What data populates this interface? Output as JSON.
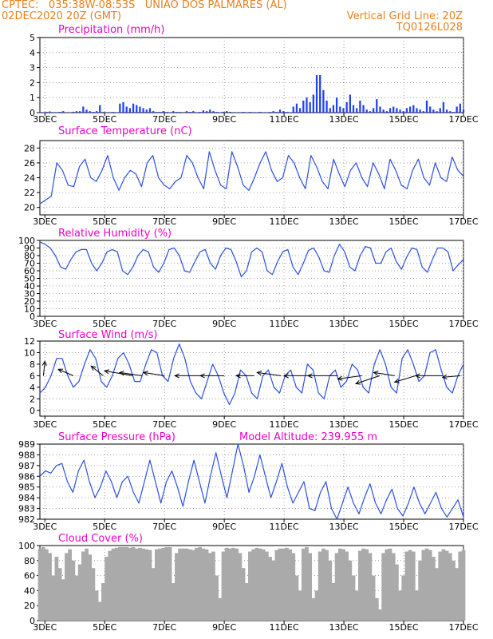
{
  "header": {
    "line1_left": "CPTEC:   035:38W-08:53S   UNIAO DOS PALMARES (AL)",
    "line2_left": "02DEC2020 20Z (GMT)",
    "line2_right": "Vertical Grid Line: 20Z",
    "line3_right": "TQ0126L028"
  },
  "colors": {
    "header": "#e8801c",
    "title": "#ee00cc",
    "line": "#2b4fe0",
    "bar": "#2244ee",
    "cloud": "#aaaaaa",
    "axis": "#000000"
  },
  "x_ticks": [
    "3DEC",
    "5DEC",
    "7DEC",
    "9DEC",
    "11DEC",
    "13DEC",
    "15DEC",
    "17DEC"
  ],
  "chart_data": [
    {
      "id": "precip",
      "type": "bar",
      "title": "Precipitation (mm/h)",
      "ylim": [
        0,
        5
      ],
      "yticks": [
        "0",
        "1",
        "2",
        "3",
        "4",
        "5"
      ],
      "x_range_days": [
        2.833,
        17.0
      ],
      "values": [
        0.02,
        0.03,
        0.05,
        0.08,
        0.03,
        0.02,
        0.05,
        0.1,
        0.03,
        0.02,
        0.06,
        0.1,
        0.1,
        0.4,
        0.2,
        0.1,
        0.05,
        0.1,
        0.5,
        0.05,
        0.02,
        0.03,
        0.05,
        0.02,
        0.6,
        0.7,
        0.4,
        0.3,
        0.6,
        0.5,
        0.4,
        0.3,
        0.2,
        0.3,
        0.1,
        0.05,
        0.05,
        0.1,
        0.05,
        0.02,
        0.1,
        0.05,
        0.05,
        0.02,
        0.1,
        0.05,
        0.1,
        0.02,
        0.05,
        0.15,
        0.1,
        0.2,
        0.1,
        0.05,
        0.02,
        0.05,
        0.1,
        0.05,
        0.02,
        0.03,
        0.02,
        0.05,
        0.02,
        0.05,
        0.03,
        0.02,
        0.05,
        0.02,
        0.03,
        0.05,
        0.1,
        0.05,
        0.2,
        0.1,
        0.05,
        0.02,
        0.4,
        0.6,
        0.3,
        0.8,
        1.0,
        0.7,
        1.2,
        2.5,
        2.5,
        1.5,
        0.8,
        0.3,
        0.5,
        1.0,
        0.4,
        0.3,
        0.7,
        1.2,
        0.5,
        0.3,
        0.8,
        0.5,
        0.2,
        0.1,
        0.3,
        0.9,
        0.4,
        0.2,
        0.1,
        0.3,
        0.4,
        0.3,
        0.2,
        0.1,
        0.3,
        0.4,
        0.5,
        0.3,
        0.2,
        0.1,
        0.8,
        0.4,
        0.2,
        0.1,
        0.3,
        0.7,
        0.2,
        0.1,
        0.05,
        0.4,
        0.6,
        0.2
      ]
    },
    {
      "id": "temp",
      "type": "line",
      "title": "Surface Temperature (nC)",
      "ylim": [
        19,
        29
      ],
      "yticks": [
        "20",
        "22",
        "24",
        "26",
        "28"
      ],
      "x_range_days": [
        2.833,
        17.0
      ],
      "values": [
        20.5,
        21,
        21.5,
        26,
        25,
        23,
        22.8,
        25.5,
        26.5,
        24,
        23.5,
        25,
        27,
        24,
        22.3,
        24,
        25,
        24.5,
        22.8,
        26,
        27,
        24,
        23,
        22.5,
        23.5,
        24,
        27,
        26,
        24,
        22.5,
        27.5,
        25,
        23,
        22.5,
        27.5,
        25.5,
        23,
        22.3,
        24,
        26,
        27.5,
        25,
        23.5,
        24,
        27,
        26,
        24,
        22.5,
        27,
        25.5,
        23.5,
        22.5,
        26.5,
        24.5,
        22.8,
        25,
        26,
        24,
        22.8,
        26,
        24.5,
        22.5,
        26.5,
        25,
        23,
        22.5,
        25,
        26.5,
        24,
        23,
        26,
        24,
        23.5,
        26.8,
        25,
        24.2
      ]
    },
    {
      "id": "rh",
      "type": "line",
      "title": "Relative Humidity (%)",
      "ylim": [
        0,
        100
      ],
      "yticks": [
        "0",
        "10",
        "20",
        "30",
        "40",
        "50",
        "60",
        "70",
        "80",
        "90",
        "100"
      ],
      "x_range_days": [
        2.833,
        17.0
      ],
      "values": [
        98,
        95,
        90,
        80,
        65,
        62,
        75,
        85,
        88,
        88,
        70,
        60,
        70,
        85,
        88,
        85,
        60,
        55,
        65,
        80,
        88,
        85,
        65,
        58,
        70,
        88,
        90,
        80,
        60,
        58,
        72,
        85,
        88,
        70,
        62,
        80,
        90,
        88,
        72,
        52,
        60,
        85,
        90,
        85,
        60,
        55,
        72,
        85,
        88,
        65,
        55,
        70,
        87,
        90,
        78,
        60,
        58,
        80,
        95,
        85,
        65,
        60,
        80,
        92,
        90,
        70,
        70,
        85,
        90,
        72,
        62,
        78,
        90,
        88,
        65,
        58,
        75,
        90,
        90,
        85,
        60,
        68,
        75
      ]
    },
    {
      "id": "wind",
      "type": "line",
      "title": "Surface Wind (m/s)",
      "ylim": [
        -1,
        12
      ],
      "yticks": [
        "0",
        "2",
        "4",
        "6",
        "8",
        "10",
        "12"
      ],
      "x_range_days": [
        2.833,
        17.0
      ],
      "values": [
        3,
        4,
        6,
        9,
        9,
        6,
        4,
        5,
        8,
        10.5,
        9,
        5,
        4,
        6,
        9,
        10,
        8,
        5,
        5,
        8,
        10.5,
        10,
        6,
        5,
        9,
        11.5,
        9,
        5,
        3,
        2,
        5,
        8,
        6,
        3,
        1,
        3,
        7,
        6,
        3,
        2,
        6,
        7,
        4,
        3,
        6,
        7,
        4,
        3,
        8,
        7,
        3,
        2,
        6,
        7,
        4,
        5,
        8,
        7,
        4,
        3,
        8,
        10.5,
        8,
        4,
        3,
        9,
        10.5,
        8,
        5,
        6,
        10,
        10.5,
        7,
        4,
        3,
        6,
        8
      ]
    },
    {
      "id": "pressure",
      "type": "line",
      "title": "Surface Pressure (hPa)",
      "annotation": "Model Altitude: 239.955 m",
      "ylim": [
        982,
        989
      ],
      "yticks": [
        "982",
        "983",
        "984",
        "985",
        "986",
        "987",
        "988",
        "989"
      ],
      "x_range_days": [
        2.833,
        17.0
      ],
      "values": [
        986,
        986.5,
        986.3,
        987,
        987.2,
        985.5,
        984.5,
        986.5,
        987.5,
        985.5,
        984,
        985,
        986.5,
        985.5,
        984,
        985.5,
        986,
        984.5,
        983.5,
        985.5,
        987.5,
        985.5,
        983.5,
        985.5,
        986.5,
        985,
        983.2,
        985.5,
        987.5,
        985.5,
        983.5,
        986,
        988.2,
        986,
        984,
        986.5,
        989,
        987,
        984.5,
        986,
        988,
        986,
        984,
        985.5,
        987.2,
        985,
        983.5,
        984.5,
        985.5,
        983,
        982.8,
        984.5,
        985.5,
        983,
        982,
        983.5,
        985,
        983.5,
        982.5,
        984,
        985.3,
        983.5,
        982.5,
        983.8,
        984.8,
        983,
        982.3,
        983.5,
        985,
        983.5,
        982.5,
        983.5,
        984.5,
        983,
        982.2,
        983,
        983.8,
        982.2
      ]
    },
    {
      "id": "cloud",
      "type": "area",
      "title": "Cloud Cover (%)",
      "ylim": [
        0,
        100
      ],
      "yticks": [
        "0",
        "20",
        "40",
        "60",
        "80",
        "100"
      ],
      "x_range_days": [
        2.833,
        17.0
      ],
      "values": [
        96,
        98,
        95,
        90,
        60,
        85,
        70,
        55,
        90,
        95,
        80,
        60,
        75,
        92,
        96,
        88,
        70,
        40,
        25,
        50,
        85,
        93,
        96,
        97,
        98,
        98,
        98,
        97,
        98,
        96,
        97,
        96,
        95,
        94,
        70,
        95,
        96,
        97,
        98,
        98,
        50,
        90,
        96,
        96,
        96,
        95,
        94,
        97,
        98,
        96,
        95,
        90,
        92,
        60,
        30,
        92,
        97,
        96,
        97,
        96,
        90,
        70,
        50,
        92,
        95,
        97,
        96,
        95,
        92,
        85,
        80,
        94,
        96,
        96,
        97,
        95,
        90,
        60,
        40,
        96,
        98,
        90,
        30,
        40,
        92,
        96,
        94,
        80,
        50,
        90,
        96,
        95,
        92,
        80,
        60,
        40,
        93,
        96,
        95,
        90,
        60,
        30,
        15,
        90,
        95,
        96,
        90,
        75,
        40,
        60,
        92,
        94,
        92,
        40,
        80,
        94,
        96,
        94,
        85,
        70,
        92,
        95,
        93,
        90,
        80,
        70,
        92,
        94
      ]
    }
  ]
}
